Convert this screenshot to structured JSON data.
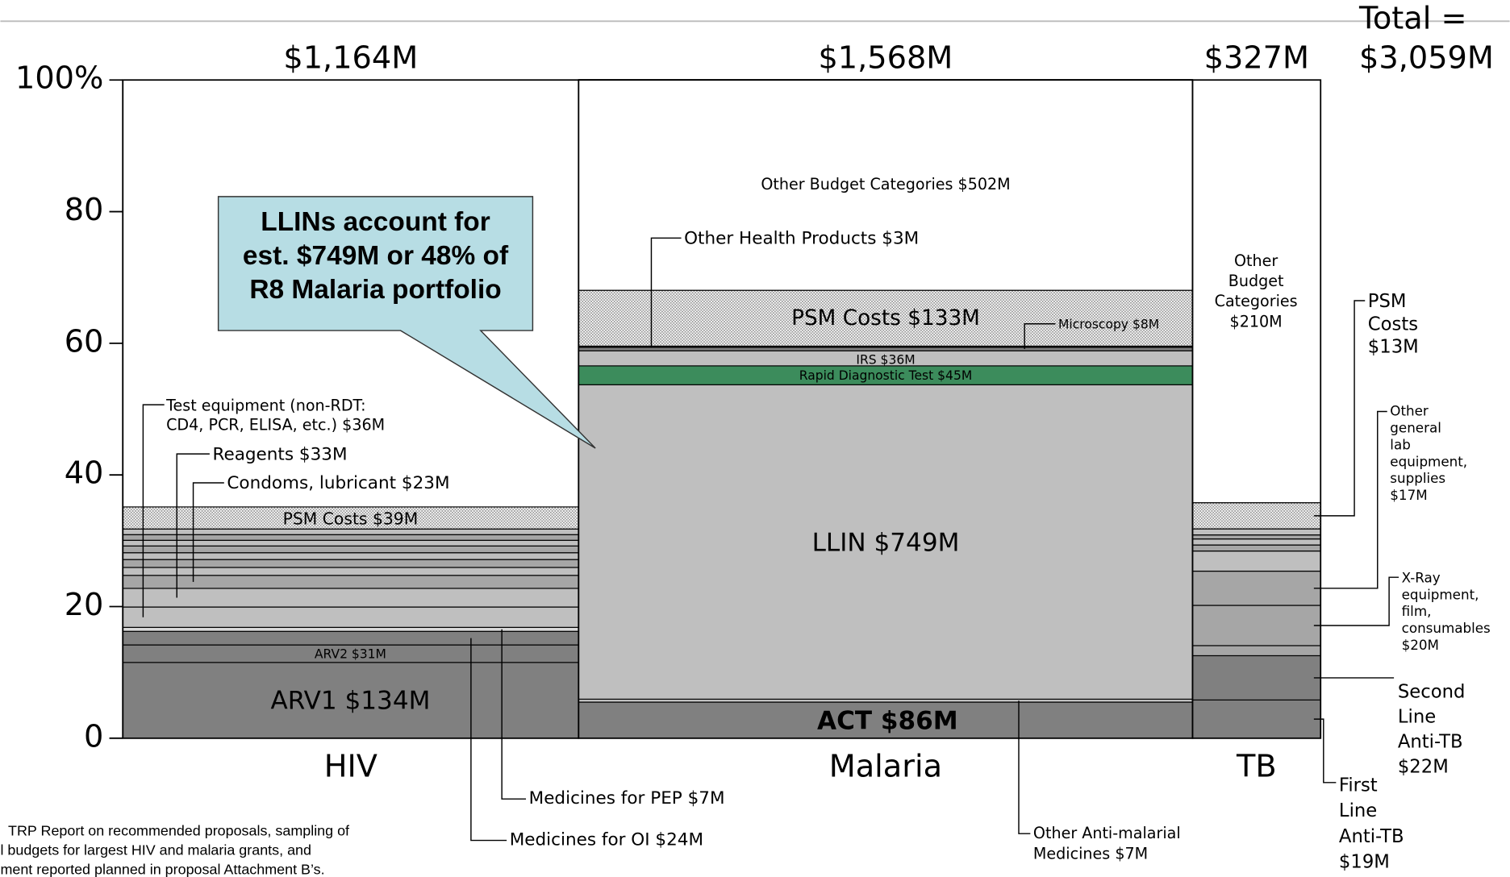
{
  "chart_data": {
    "type": "marimekko",
    "total_prefix": "Total =",
    "total": 3059,
    "total_label": "$3,059M",
    "ylim": [
      0,
      100
    ],
    "yticks": [
      0,
      20,
      40,
      60,
      80,
      {
        "value": 100,
        "label": "100%"
      }
    ],
    "callout": [
      "LLINs account for",
      "est. $749M or 48% of",
      "R8 Malaria portfolio"
    ],
    "source": [
      "TRP Report on recommended proposals, sampling of",
      "l budgets for largest HIV and malaria grants, and",
      "ment reported planned in proposal Attachment B’s."
    ],
    "columns": [
      {
        "name": "HIV",
        "total": 1164,
        "total_label": "$1,164M",
        "segments": [
          {
            "label": "ARV1 $134M",
            "value": 134,
            "color": "#808080"
          },
          {
            "label": "ARV2 $31M",
            "value": 31,
            "color": "#808080"
          },
          {
            "label": "Medicines for OI $24M",
            "value": 24,
            "color": "#808080"
          },
          {
            "label": "Medicines for PEP $7M",
            "value": 7,
            "color": "#d9d9d9"
          },
          {
            "label": [
              "Test equipment (non-RDT:",
              "CD4, PCR, ELISA, etc.) $36M"
            ],
            "value": 36,
            "color": "#bfbfbf"
          },
          {
            "label": "Reagents $33M",
            "value": 33,
            "color": "#bfbfbf"
          },
          {
            "label": "Condoms, lubricant $23M",
            "value": 23,
            "color": "#a6a6a6"
          },
          {
            "value": 14,
            "color": "#bfbfbf"
          },
          {
            "value": 14,
            "color": "#a6a6a6"
          },
          {
            "value": 12,
            "color": "#bfbfbf"
          },
          {
            "value": 12,
            "color": "#a6a6a6"
          },
          {
            "value": 10,
            "color": "#bfbfbf"
          },
          {
            "value": 10,
            "color": "#a6a6a6"
          },
          {
            "value": 10,
            "color": "#bfbfbf"
          },
          {
            "label": "PSM Costs $39M",
            "value": 39,
            "color": "#ffffff",
            "pattern": "hatch"
          },
          {
            "value": 755,
            "color": "#ffffff"
          }
        ]
      },
      {
        "name": "Malaria",
        "total": 1568,
        "total_label": "$1,568M",
        "segments": [
          {
            "label": "ACT $86M",
            "value": 86,
            "color": "#808080"
          },
          {
            "label": [
              "Other Anti-malarial",
              "Medicines $7M"
            ],
            "value": 7,
            "color": "#bfbfbf"
          },
          {
            "label": "LLIN $749M",
            "value": 749,
            "color": "#bfbfbf"
          },
          {
            "label": "Rapid Diagnostic Test $45M",
            "value": 45,
            "color": "#3c8c5c"
          },
          {
            "label": "IRS $36M",
            "value": 36,
            "color": "#bfbfbf"
          },
          {
            "label": "Microscopy $8M",
            "value": 8,
            "color": "#808080"
          },
          {
            "label": "Other Health Products $3M",
            "value": 3,
            "color": "#404040"
          },
          {
            "label": "PSM Costs $133M",
            "value": 133,
            "color": "#ffffff",
            "pattern": "hatch"
          },
          {
            "label": "Other Budget Categories $502M",
            "value": 502,
            "color": "#ffffff"
          }
        ]
      },
      {
        "name": "TB",
        "total": 327,
        "total_label": "$327M",
        "segments": [
          {
            "label": [
              "First",
              "Line",
              "Anti-TB",
              "$19M"
            ],
            "value": 19,
            "color": "#808080"
          },
          {
            "label": [
              "Second",
              "Line",
              "Anti-TB",
              "$22M"
            ],
            "value": 22,
            "color": "#808080"
          },
          {
            "value": 5,
            "color": "#a6a6a6"
          },
          {
            "label": [
              "X-Ray",
              "equipment,",
              "film,",
              "consumables",
              "$20M"
            ],
            "value": 20,
            "color": "#a6a6a6"
          },
          {
            "label": [
              "Other",
              "general",
              "lab",
              "equipment,",
              "supplies",
              "$17M"
            ],
            "value": 17,
            "color": "#a6a6a6"
          },
          {
            "value": 10,
            "color": "#bfbfbf"
          },
          {
            "value": 3,
            "color": "#a6a6a6"
          },
          {
            "value": 3,
            "color": "#bfbfbf"
          },
          {
            "value": 2,
            "color": "#a6a6a6"
          },
          {
            "value": 3,
            "color": "#bfbfbf"
          },
          {
            "label": [
              "PSM",
              "Costs",
              "$13M"
            ],
            "value": 13,
            "color": "#ffffff",
            "pattern": "hatch"
          },
          {
            "label": [
              "Other",
              "Budget",
              "Categories",
              "$210M"
            ],
            "value": 210,
            "color": "#ffffff"
          }
        ]
      }
    ]
  }
}
